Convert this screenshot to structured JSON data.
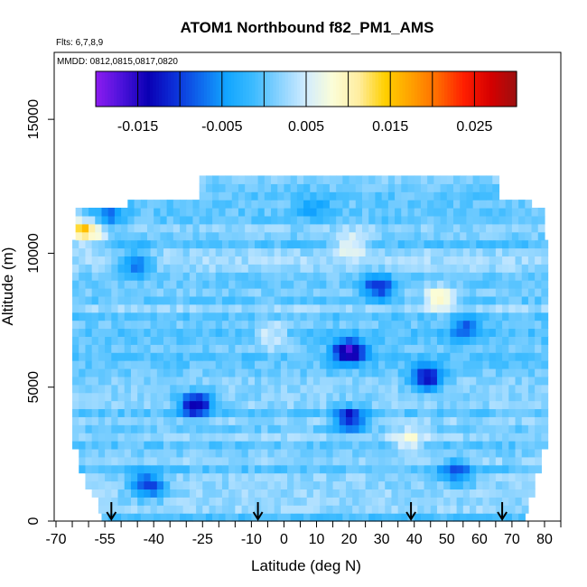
{
  "chart_data": {
    "type": "heatmap",
    "title": "ATOM1 Northbound f82_PM1_AMS",
    "flights_note": "Flts: 6,7,8,9",
    "dates_note": "MMDD: 0812,0815,0817,0820",
    "xlabel": "Latitude (deg N)",
    "ylabel": "Altitude (m)",
    "xlim": [
      -70,
      85
    ],
    "ylim": [
      0,
      17500
    ],
    "x_ticks": [
      -70,
      -55,
      -40,
      -25,
      -10,
      0,
      10,
      20,
      30,
      40,
      50,
      60,
      70,
      80
    ],
    "x_tick_labels": [
      "-70",
      "-55",
      "-40",
      "-25",
      "-10",
      "0",
      "10",
      "20",
      "30",
      "40",
      "50",
      "60",
      "70",
      "80"
    ],
    "x_minor_ticks": [
      -65,
      -60,
      -50,
      -45,
      -35,
      -30,
      -20,
      -15,
      -5,
      5,
      15,
      25,
      35,
      45,
      55,
      65,
      75,
      85
    ],
    "y_ticks": [
      0,
      5000,
      10000,
      15000
    ],
    "y_tick_labels": [
      "0",
      "5000",
      "10000",
      "15000"
    ],
    "colorbar": {
      "range": [
        -0.02,
        0.03
      ],
      "ticks": [
        -0.015,
        -0.005,
        0.005,
        0.015,
        0.025
      ],
      "tick_labels": [
        "-0.015",
        "-0.005",
        "0.005",
        "0.015",
        "0.025"
      ],
      "colors": [
        "#8d1cf0",
        "#4b12da",
        "#0a00b4",
        "#0c2fd8",
        "#0f6aee",
        "#12a6ff",
        "#3dbbff",
        "#8ad3ff",
        "#d2ecff",
        "#fbfdd8",
        "#ffeda0",
        "#ffd000",
        "#ffa000",
        "#ff6a00",
        "#ff1e00",
        "#d60000",
        "#9c1010"
      ]
    },
    "flight_path_markers_latitude": [
      -53,
      -8,
      39,
      67
    ],
    "grid": false,
    "legend": "none",
    "background_value": 0.001,
    "anomalies": [
      {
        "lat": -28,
        "alt": 4200,
        "value": -0.016
      },
      {
        "lat": 19,
        "alt": 3700,
        "value": -0.013
      },
      {
        "lat": 19,
        "alt": 6200,
        "value": -0.017
      },
      {
        "lat": 43,
        "alt": 5200,
        "value": -0.014
      },
      {
        "lat": -43,
        "alt": 1200,
        "value": -0.012
      },
      {
        "lat": -47,
        "alt": 9500,
        "value": -0.009
      },
      {
        "lat": 28,
        "alt": 8600,
        "value": -0.011
      },
      {
        "lat": 55,
        "alt": 7100,
        "value": -0.008
      },
      {
        "lat": 52,
        "alt": 1700,
        "value": -0.009
      },
      {
        "lat": 8,
        "alt": 11600,
        "value": -0.004
      },
      {
        "lat": -55,
        "alt": 11300,
        "value": -0.006
      },
      {
        "lat": 20,
        "alt": 10200,
        "value": 0.008
      },
      {
        "lat": -5,
        "alt": 6800,
        "value": 0.007
      },
      {
        "lat": -62,
        "alt": 10700,
        "value": 0.014
      },
      {
        "lat": 37,
        "alt": 2900,
        "value": 0.007
      },
      {
        "lat": 47,
        "alt": 8200,
        "value": 0.009
      }
    ]
  }
}
